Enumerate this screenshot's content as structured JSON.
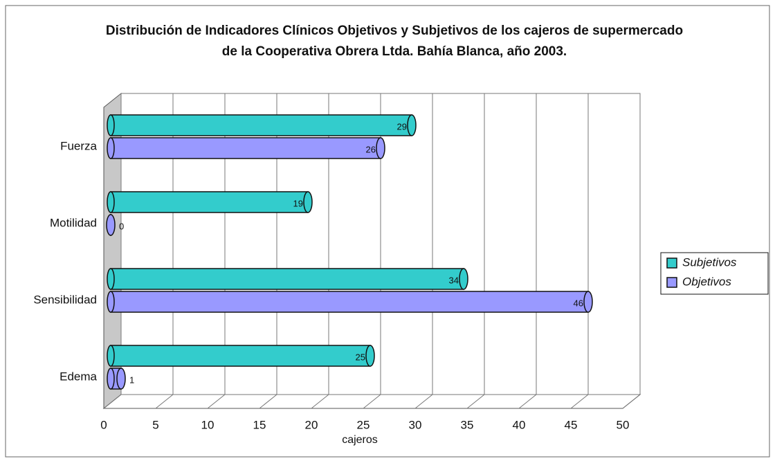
{
  "chart_data": {
    "type": "bar",
    "orientation": "horizontal",
    "title": "Distribución de Indicadores Clínicos Objetivos y Subjetivos de los cajeros de supermercado de la Cooperativa Obrera Ltda. Bahía Blanca, año 2003.",
    "categories": [
      "Fuerza",
      "Motilidad",
      "Sensibilidad",
      "Edema"
    ],
    "series": [
      {
        "name": "Subjetivos",
        "color": "#33cccc",
        "values": [
          29,
          19,
          34,
          25
        ]
      },
      {
        "name": "Objetivos",
        "color": "#9999ff",
        "values": [
          26,
          0,
          46,
          1
        ]
      }
    ],
    "xlabel": "cajeros",
    "xlim": [
      0,
      50
    ],
    "xticks": [
      0,
      5,
      10,
      15,
      20,
      25,
      30,
      35,
      40,
      45,
      50
    ],
    "grid": true,
    "legend": "right"
  }
}
